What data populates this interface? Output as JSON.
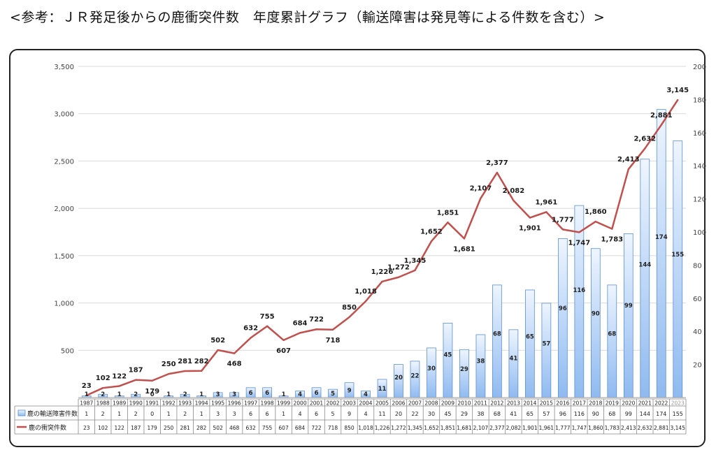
{
  "title": "<参考：ＪＲ発足後からの鹿衝突件数　年度累計グラフ（輸送障害は発見等による件数を含む）>",
  "colors": {
    "bar_fill_top": "#eef5ff",
    "bar_fill_bottom": "#8fbaf0",
    "bar_stroke": "#5b8fd0",
    "line": "#c0504d"
  },
  "chart_data": {
    "type": "bar+line",
    "categories": [
      "1987",
      "1988",
      "1989",
      "1990",
      "1991",
      "1992",
      "1993",
      "1994",
      "1995",
      "1996",
      "1997",
      "1998",
      "1999",
      "2000",
      "2001",
      "2002",
      "2003",
      "2004",
      "2005",
      "2006",
      "2007",
      "2008",
      "2009",
      "2010",
      "2011",
      "2012",
      "2013",
      "2014",
      "2015",
      "2016",
      "2017",
      "2018",
      "2019",
      "2020",
      "2021",
      "2022",
      "2023"
    ],
    "series": [
      {
        "name": "鹿の輸送障害件数",
        "kind": "bar",
        "axis": "right",
        "values": [
          1,
          2,
          1,
          2,
          0,
          1,
          2,
          1,
          3,
          3,
          6,
          6,
          1,
          4,
          6,
          5,
          9,
          4,
          11,
          20,
          22,
          30,
          45,
          29,
          38,
          68,
          41,
          65,
          57,
          96,
          116,
          90,
          68,
          99,
          144,
          174,
          155
        ]
      },
      {
        "name": "鹿の衝突件数",
        "kind": "line",
        "axis": "left",
        "values": [
          23,
          102,
          122,
          187,
          179,
          250,
          281,
          282,
          502,
          468,
          632,
          755,
          607,
          684,
          722,
          718,
          850,
          1018,
          1226,
          1272,
          1345,
          1652,
          1851,
          1681,
          2107,
          2377,
          2082,
          1901,
          1961,
          1777,
          1747,
          1860,
          1783,
          2413,
          2632,
          2881,
          3145
        ]
      }
    ],
    "y_left": {
      "range": [
        0,
        3500
      ],
      "ticks": [
        500,
        1000,
        1500,
        2000,
        2500,
        3000,
        3500
      ],
      "labels": [
        "500",
        "1,000",
        "1,500",
        "2,000",
        "2,500",
        "3,000",
        "3,500"
      ]
    },
    "y_right": {
      "range": [
        0,
        200
      ],
      "ticks": [
        20,
        40,
        60,
        80,
        100,
        120,
        140,
        160,
        180,
        200
      ],
      "labels": [
        "20",
        "40",
        "60",
        "80",
        "100",
        "120",
        "140",
        "160",
        "180",
        "200"
      ]
    },
    "grid": true,
    "legend": "data-table-below",
    "data_table": {
      "bar_labels": [
        "1",
        "2",
        "1",
        "2",
        "0",
        "1",
        "2",
        "1",
        "3",
        "3",
        "6",
        "6",
        "1",
        "4",
        "6",
        "5",
        "9",
        "4",
        "11",
        "20",
        "22",
        "30",
        "45",
        "29",
        "38",
        "68",
        "41",
        "65",
        "57",
        "96",
        "116",
        "90",
        "68",
        "99",
        "144",
        "174",
        "155"
      ],
      "line_labels": [
        "23",
        "102",
        "122",
        "187",
        "179",
        "250",
        "281",
        "282",
        "502",
        "468",
        "632",
        "755",
        "607",
        "684",
        "722",
        "718",
        "850",
        "1,018",
        "1,226",
        "1,272",
        "1,345",
        "1,652",
        "1,851",
        "1,681",
        "2,107",
        "2,377",
        "2,082",
        "1,901",
        "1,961",
        "1,777",
        "1,747",
        "1,860",
        "1,783",
        "2,413",
        "2,632",
        "2,881",
        "3,145"
      ]
    }
  }
}
